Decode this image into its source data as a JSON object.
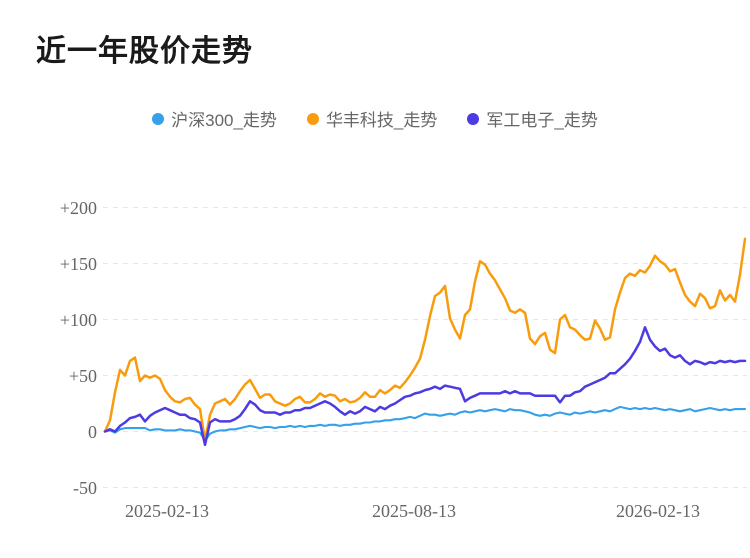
{
  "chart_data": {
    "type": "line",
    "title": "近一年股价走势",
    "legend_position": "top-center",
    "grid": "dashed-horizontal",
    "grid_color": "#e7e7e7",
    "text_color": "#666666",
    "title_color": "#1a1a1a",
    "ylim": [
      -50,
      200
    ],
    "y_ticks": [
      "+200",
      "+150",
      "+100",
      "+50",
      "0",
      "-50"
    ],
    "y_tick_values": [
      200,
      150,
      100,
      50,
      0,
      -50
    ],
    "x_tick_labels": [
      "2025-02-13",
      "2025-08-13",
      "2026-02-13"
    ],
    "x_range_note": "daily points from 2025-02-13 to 2026-02-13, values are % change",
    "series": [
      {
        "name": "沪深300_走势",
        "color": "#36A0EA",
        "values": [
          0,
          1,
          -1,
          2,
          3,
          3,
          3,
          3,
          3,
          1,
          2,
          2,
          1,
          1,
          1,
          2,
          1,
          1,
          0,
          -1,
          -8,
          -2,
          0,
          1,
          1,
          2,
          2,
          3,
          4,
          5,
          4,
          3,
          4,
          4,
          3,
          4,
          4,
          5,
          4,
          5,
          4,
          5,
          5,
          6,
          5,
          6,
          6,
          5,
          6,
          6,
          7,
          7,
          8,
          8,
          9,
          9,
          10,
          10,
          11,
          11,
          12,
          13,
          12,
          14,
          16,
          15,
          15,
          14,
          15,
          16,
          15,
          17,
          18,
          17,
          18,
          19,
          18,
          19,
          20,
          19,
          18,
          20,
          19,
          19,
          18,
          17,
          15,
          14,
          15,
          14,
          16,
          17,
          16,
          15,
          17,
          16,
          17,
          18,
          17,
          18,
          19,
          18,
          20,
          22,
          21,
          20,
          21,
          20,
          21,
          20,
          21,
          20,
          19,
          20,
          19,
          18,
          19,
          20,
          18,
          19,
          20,
          21,
          20,
          19,
          20,
          19,
          20,
          20,
          20
        ]
      },
      {
        "name": "华丰科技_走势",
        "color": "#F89C0E",
        "values": [
          0,
          10,
          35,
          55,
          50,
          63,
          66,
          45,
          50,
          48,
          50,
          47,
          37,
          31,
          27,
          26,
          29,
          30,
          24,
          20,
          -8,
          15,
          25,
          27,
          29,
          24,
          29,
          36,
          42,
          46,
          38,
          30,
          33,
          33,
          27,
          25,
          23,
          25,
          29,
          31,
          26,
          26,
          29,
          34,
          31,
          33,
          32,
          27,
          29,
          26,
          27,
          30,
          35,
          31,
          31,
          37,
          34,
          37,
          41,
          39,
          44,
          50,
          57,
          65,
          82,
          103,
          121,
          124,
          130,
          101,
          91,
          83,
          104,
          109,
          134,
          152,
          149,
          141,
          135,
          127,
          119,
          108,
          106,
          109,
          106,
          83,
          78,
          85,
          88,
          73,
          70,
          100,
          104,
          93,
          91,
          86,
          82,
          83,
          99,
          92,
          82,
          84,
          109,
          124,
          137,
          141,
          139,
          144,
          142,
          148,
          157,
          152,
          149,
          143,
          145,
          133,
          122,
          116,
          112,
          123,
          119,
          110,
          112,
          126,
          117,
          122,
          116,
          140,
          172
        ]
      },
      {
        "name": "军工电子_走势",
        "color": "#4C3BE2",
        "values": [
          0,
          2,
          0,
          5,
          8,
          12,
          13,
          15,
          9,
          14,
          17,
          19,
          21,
          19,
          17,
          15,
          15,
          12,
          11,
          8,
          -12,
          8,
          11,
          9,
          9,
          9,
          11,
          14,
          20,
          27,
          24,
          19,
          17,
          17,
          17,
          15,
          17,
          17,
          19,
          19,
          21,
          21,
          23,
          25,
          27,
          25,
          22,
          18,
          15,
          18,
          16,
          18,
          22,
          20,
          18,
          22,
          20,
          23,
          25,
          28,
          31,
          32,
          34,
          35,
          37,
          38,
          40,
          38,
          41,
          40,
          39,
          38,
          27,
          30,
          32,
          34,
          34,
          34,
          34,
          34,
          36,
          34,
          36,
          34,
          34,
          34,
          32,
          32,
          32,
          32,
          32,
          26,
          32,
          32,
          35,
          36,
          40,
          42,
          44,
          46,
          48,
          52,
          52,
          56,
          60,
          65,
          72,
          80,
          93,
          82,
          76,
          72,
          74,
          68,
          66,
          68,
          63,
          60,
          63,
          62,
          60,
          62,
          61,
          63,
          62,
          63,
          62,
          63,
          63
        ]
      }
    ]
  }
}
